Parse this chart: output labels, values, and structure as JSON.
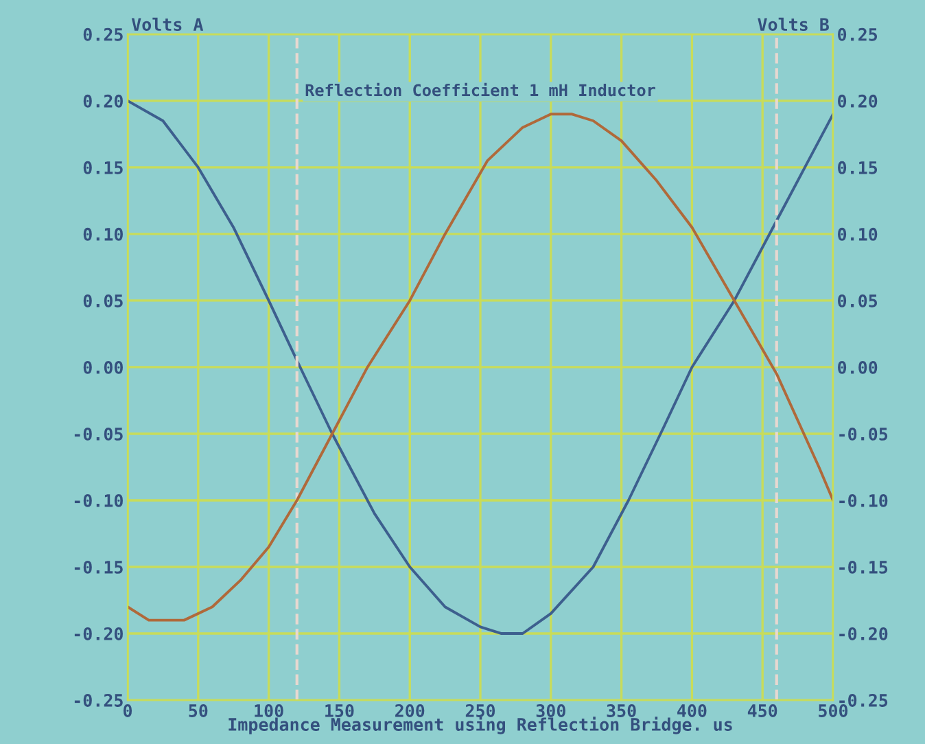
{
  "chart_data": {
    "type": "line",
    "title": "Reflection Coefficient 1 mH Inductor",
    "xlabel": "Impedance Measurement using Reflection Bridge. us",
    "ylabel": "Volts A",
    "y2label": "Volts B",
    "xlim": [
      0,
      500
    ],
    "xticks": [
      0,
      50,
      100,
      150,
      200,
      250,
      300,
      350,
      400,
      450,
      500
    ],
    "ylim": [
      -0.25,
      0.25
    ],
    "yticks": [
      {
        "value": -0.25,
        "label": "-0.25"
      },
      {
        "value": -0.2,
        "label": "-0.20"
      },
      {
        "value": -0.15,
        "label": "-0.15"
      },
      {
        "value": -0.1,
        "label": "-0.10"
      },
      {
        "value": -0.05,
        "label": "-0.05"
      },
      {
        "value": 0,
        "label": "0.00"
      },
      {
        "value": 0.05,
        "label": "0.05"
      },
      {
        "value": 0.1,
        "label": "0.10"
      },
      {
        "value": 0.15,
        "label": "0.15"
      },
      {
        "value": 0.2,
        "label": "0.20"
      },
      {
        "value": 0.25,
        "label": "0.25"
      }
    ],
    "y2lim": [
      -0.25,
      0.25
    ],
    "y2ticks": [
      {
        "value": -0.25,
        "label": "-0.25"
      },
      {
        "value": -0.2,
        "label": "-0.20"
      },
      {
        "value": -0.15,
        "label": "-0.15"
      },
      {
        "value": -0.1,
        "label": "-0.10"
      },
      {
        "value": -0.05,
        "label": "-0.05"
      },
      {
        "value": 0,
        "label": "0.00"
      },
      {
        "value": 0.05,
        "label": "0.05"
      },
      {
        "value": 0.1,
        "label": "0.10"
      },
      {
        "value": 0.15,
        "label": "0.15"
      },
      {
        "value": 0.2,
        "label": "0.20"
      },
      {
        "value": 0.25,
        "label": "0.25"
      }
    ],
    "grid": true,
    "line_style": "solid",
    "marker": "none",
    "ref_lines": [
      {
        "axis": "x",
        "value": 120,
        "color": "#e8d8d0",
        "line_style": "dashed"
      },
      {
        "axis": "x",
        "value": 460,
        "color": "#e8d8d0",
        "line_style": "dashed"
      }
    ],
    "series": [
      {
        "color": "#3d5f8e",
        "x": [
          0,
          25,
          50,
          75,
          100,
          120,
          145,
          175,
          200,
          225,
          250,
          265,
          280,
          300,
          330,
          355,
          380,
          400,
          430,
          460,
          480,
          500
        ],
        "values": [
          0.2,
          0.185,
          0.15,
          0.105,
          0.05,
          0.005,
          -0.05,
          -0.11,
          -0.15,
          -0.18,
          -0.195,
          -0.2,
          -0.2,
          -0.185,
          -0.15,
          -0.1,
          -0.045,
          0.0,
          0.05,
          0.11,
          0.15,
          0.19
        ]
      },
      {
        "color": "#b0693a",
        "axis": "y2",
        "x": [
          0,
          15,
          25,
          40,
          60,
          80,
          100,
          120,
          145,
          170,
          200,
          225,
          255,
          280,
          300,
          315,
          330,
          350,
          375,
          400,
          430,
          460,
          490,
          500
        ],
        "values": [
          -0.18,
          -0.19,
          -0.19,
          -0.19,
          -0.18,
          -0.16,
          -0.135,
          -0.1,
          -0.05,
          0.0,
          0.05,
          0.1,
          0.155,
          0.18,
          0.19,
          0.19,
          0.185,
          0.17,
          0.14,
          0.105,
          0.05,
          -0.005,
          -0.075,
          -0.1
        ]
      }
    ]
  }
}
